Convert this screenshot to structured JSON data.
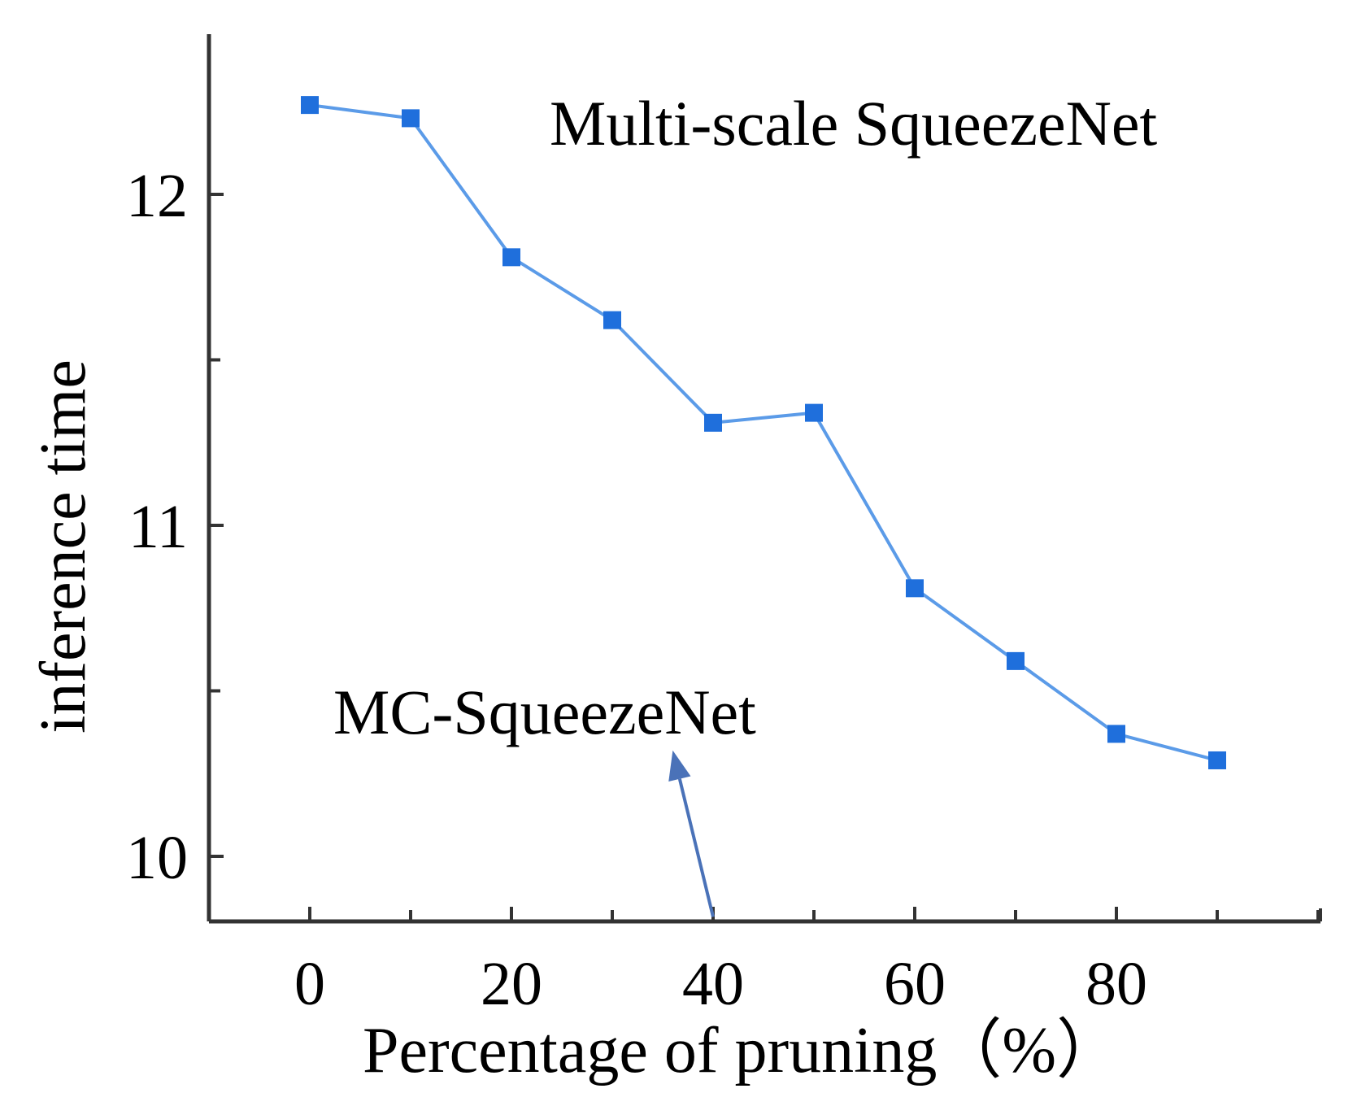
{
  "chart_data": {
    "type": "line",
    "title": "",
    "xlabel": "Percentage of pruning（%）",
    "ylabel": "inference time",
    "xlim": [
      -10,
      100
    ],
    "ylim": [
      9.8,
      12.5
    ],
    "xticks": [
      0,
      20,
      40,
      60,
      80
    ],
    "yticks": [
      10,
      11,
      12
    ],
    "grid": false,
    "series": [
      {
        "name": "Multi-scale SqueezeNet",
        "color": "#1f6fdc",
        "line_color": "#5b9be8",
        "marker": "square",
        "x": [
          0,
          10,
          20,
          30,
          40,
          50,
          60,
          70,
          80,
          90
        ],
        "y": [
          12.27,
          12.23,
          11.81,
          11.62,
          11.31,
          11.34,
          10.81,
          10.59,
          10.37,
          10.29
        ]
      }
    ],
    "annotations": [
      {
        "text": "Multi-scale SqueezeNet",
        "arrow": false
      },
      {
        "text": "MC-SqueezeNet",
        "arrow": true,
        "arrow_color": "#4a72b8",
        "arrow_from": [
          40,
          9.8
        ],
        "arrow_to": [
          36,
          10.32
        ]
      }
    ]
  }
}
